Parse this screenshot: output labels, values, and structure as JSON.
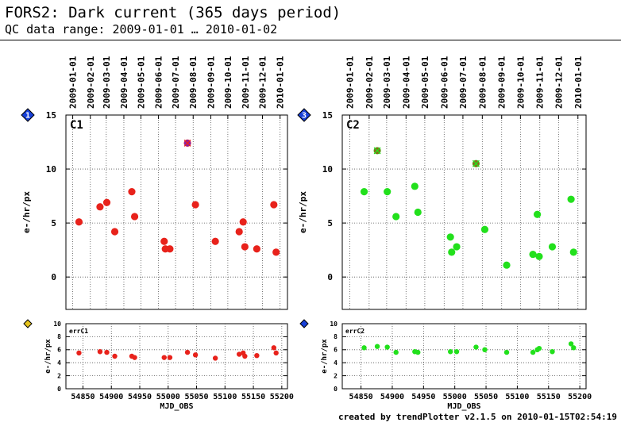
{
  "header": {
    "title": "FORS2: Dark current (365 days period)",
    "subtitle": "QC data range: 2009-01-01 … 2010-01-02"
  },
  "footer": {
    "text": "created by trendPlotter v2.1.5 on 2010-01-15T02:54:19"
  },
  "colors": {
    "c1": "#e8221b",
    "c2": "#22e01c",
    "outlier": "#8a1da8",
    "outlier2": "#8b6a1a",
    "grid": "#555555"
  },
  "chart_data": [
    {
      "type": "scatter",
      "panel_label": "C1",
      "badge": "1",
      "ylabel": "e-/hr/px",
      "ylim": [
        -3,
        15
      ],
      "xlim": [
        54820,
        55210
      ],
      "date_ticks": [
        "2009-01-01",
        "2009-02-01",
        "2009-03-01",
        "2009-04-01",
        "2009-05-01",
        "2009-06-01",
        "2009-07-01",
        "2009-08-01",
        "2009-09-01",
        "2009-10-01",
        "2009-11-01",
        "2009-12-01",
        "2010-01-01"
      ],
      "date_mjd": [
        54832,
        54863,
        54891,
        54922,
        54952,
        54983,
        55013,
        55044,
        55075,
        55105,
        55136,
        55166,
        55197
      ],
      "yticks": [
        0,
        5,
        10,
        15
      ],
      "x": [
        54843,
        54880,
        54892,
        54906,
        54936,
        54941,
        54993,
        54995,
        55003,
        55034,
        55048,
        55083,
        55125,
        55132,
        55135,
        55156,
        55186,
        55190
      ],
      "y": [
        5.1,
        6.5,
        6.9,
        4.2,
        7.9,
        5.6,
        3.3,
        2.6,
        2.6,
        12.4,
        6.7,
        3.3,
        4.2,
        5.1,
        2.8,
        2.6,
        6.7,
        2.3
      ],
      "outliers": [
        [
          55034,
          12.4
        ]
      ]
    },
    {
      "type": "scatter",
      "panel_label": "C2",
      "badge": "3",
      "ylabel": "e-/hr/px",
      "ylim": [
        -3,
        15
      ],
      "xlim": [
        54820,
        55210
      ],
      "date_ticks": [
        "2009-01-01",
        "2009-02-01",
        "2009-03-01",
        "2009-04-01",
        "2009-05-01",
        "2009-06-01",
        "2009-07-01",
        "2009-08-01",
        "2009-09-01",
        "2009-10-01",
        "2009-11-01",
        "2009-12-01",
        "2010-01-01"
      ],
      "date_mjd": [
        54832,
        54863,
        54891,
        54922,
        54952,
        54983,
        55013,
        55044,
        55075,
        55105,
        55136,
        55166,
        55197
      ],
      "yticks": [
        0,
        5,
        10,
        15
      ],
      "x": [
        54855,
        54876,
        54892,
        54906,
        54936,
        54941,
        54993,
        54995,
        55003,
        55034,
        55048,
        55083,
        55125,
        55132,
        55135,
        55156,
        55186,
        55190
      ],
      "y": [
        7.9,
        11.7,
        7.9,
        5.6,
        8.4,
        6.0,
        3.7,
        2.3,
        2.8,
        10.5,
        4.4,
        1.1,
        2.1,
        5.8,
        1.9,
        2.8,
        7.2,
        2.3
      ],
      "outliers": [
        [
          54876,
          11.7
        ],
        [
          55034,
          10.5
        ]
      ]
    },
    {
      "type": "scatter",
      "panel_label": "errC1",
      "ylabel": "e-/hr/px",
      "xlabel": "MJD_OBS",
      "ylim": [
        0,
        10
      ],
      "xlim": [
        54820,
        55210
      ],
      "yticks": [
        0,
        2,
        4,
        6,
        8,
        10
      ],
      "xticks": [
        54850,
        54900,
        54950,
        55000,
        55050,
        55100,
        55150,
        55200
      ],
      "x": [
        54843,
        54880,
        54892,
        54906,
        54936,
        54941,
        54993,
        55003,
        55034,
        55048,
        55083,
        55125,
        55132,
        55135,
        55156,
        55186,
        55190
      ],
      "y": [
        5.5,
        5.7,
        5.6,
        5.0,
        5.0,
        4.8,
        4.8,
        4.8,
        5.6,
        5.2,
        4.7,
        5.3,
        5.5,
        5.0,
        5.1,
        6.3,
        5.5
      ]
    },
    {
      "type": "scatter",
      "panel_label": "errC2",
      "ylabel": "e-/hr/px",
      "xlabel": "MJD_OBS",
      "ylim": [
        0,
        10
      ],
      "xlim": [
        54820,
        55210
      ],
      "yticks": [
        0,
        2,
        4,
        6,
        8,
        10
      ],
      "xticks": [
        54850,
        54900,
        54950,
        55000,
        55050,
        55100,
        55150,
        55200
      ],
      "x": [
        54855,
        54876,
        54892,
        54906,
        54936,
        54941,
        54993,
        55003,
        55034,
        55048,
        55083,
        55125,
        55132,
        55135,
        55156,
        55186,
        55190
      ],
      "y": [
        6.3,
        6.5,
        6.4,
        5.6,
        5.7,
        5.6,
        5.7,
        5.7,
        6.4,
        6.0,
        5.6,
        5.6,
        6.0,
        6.2,
        5.7,
        6.9,
        6.3
      ]
    }
  ]
}
